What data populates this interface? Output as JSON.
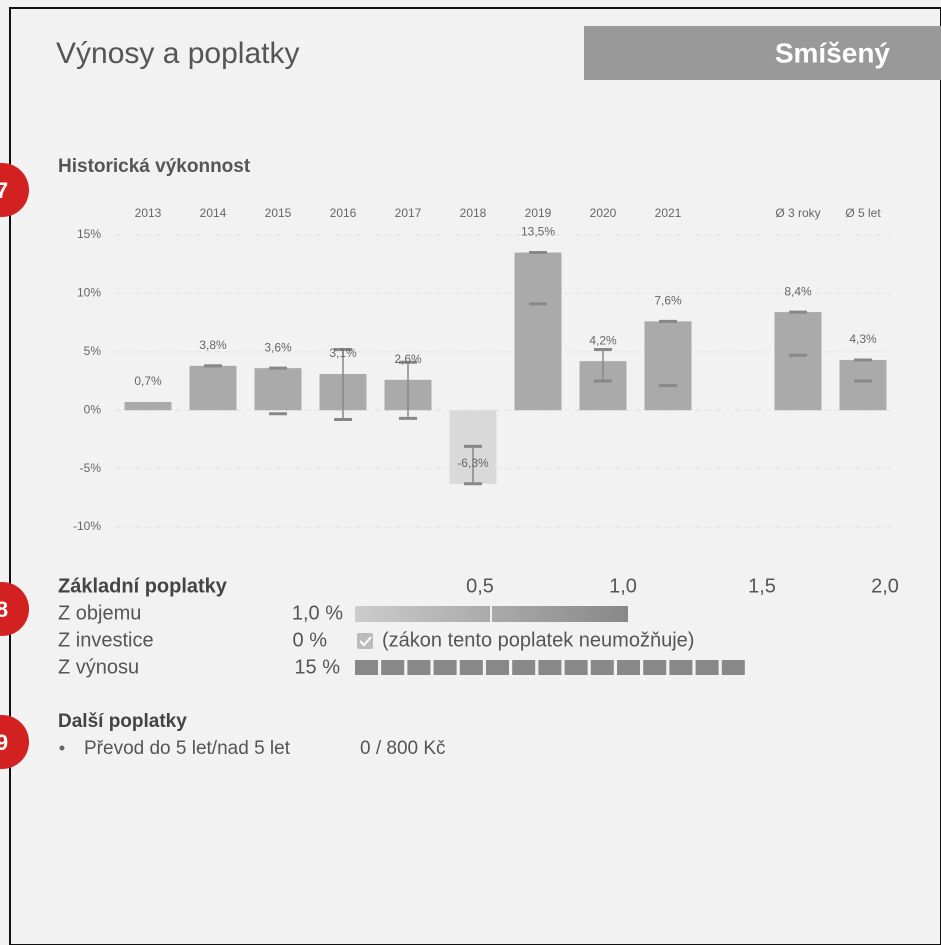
{
  "header": {
    "title": "Výnosy a poplatky",
    "badge": "Smíšený"
  },
  "markers": [
    "7",
    "8",
    "9"
  ],
  "chart_data": {
    "type": "bar",
    "title": "Historická výkonnost",
    "categories": [
      "2013",
      "2014",
      "2015",
      "2016",
      "2017",
      "2018",
      "2019",
      "2020",
      "2021",
      null,
      "Ø 3 roky",
      "Ø 5 let"
    ],
    "values": [
      0.7,
      3.8,
      3.6,
      3.1,
      2.6,
      -6.3,
      13.5,
      4.2,
      7.6,
      null,
      8.4,
      4.3
    ],
    "value_labels": [
      "0,7%",
      "3,8%",
      "3,6%",
      "3,1%",
      "2,6%",
      "-6,3%",
      "13,5%",
      "4,2%",
      "7,6%",
      null,
      "8,4%",
      "4,3%"
    ],
    "ranges": [
      null,
      [
        3.8,
        3.8
      ],
      [
        -0.3,
        3.6
      ],
      [
        -0.8,
        5.2
      ],
      [
        -0.7,
        4.1
      ],
      [
        -6.3,
        -3.1
      ],
      [
        9.1,
        13.5
      ],
      [
        2.5,
        5.2
      ],
      [
        2.1,
        7.6
      ],
      null,
      [
        4.7,
        8.4
      ],
      [
        2.5,
        4.3
      ]
    ],
    "color": "#aaaaaa",
    "negative_color": "#d9d9d9",
    "range_color": "#888888",
    "ylim": [
      -10,
      15
    ],
    "yticks": [
      {
        "value": -10,
        "label": "-10%"
      },
      {
        "value": -5,
        "label": "-5%"
      },
      {
        "value": 0,
        "label": "0%"
      },
      {
        "value": 5,
        "label": "5%"
      },
      {
        "value": 10,
        "label": "10%"
      },
      {
        "value": 15,
        "label": "15%"
      }
    ],
    "grid": true
  },
  "fees": {
    "title": "Základní poplatky",
    "scale": [
      "0,5",
      "1,0",
      "1,5",
      "2,0"
    ],
    "rows": [
      [
        "Z objemu",
        "1,0 %"
      ],
      [
        "Z investice",
        "0 %",
        "(zákon tento poplatek neumožňuje)"
      ],
      [
        "Z výnosu",
        "15 %"
      ]
    ]
  },
  "other_fees": {
    "title": "Další poplatky",
    "items": [
      [
        "Převod do 5 let/nad 5 let",
        "0 / 800 Kč"
      ]
    ]
  }
}
